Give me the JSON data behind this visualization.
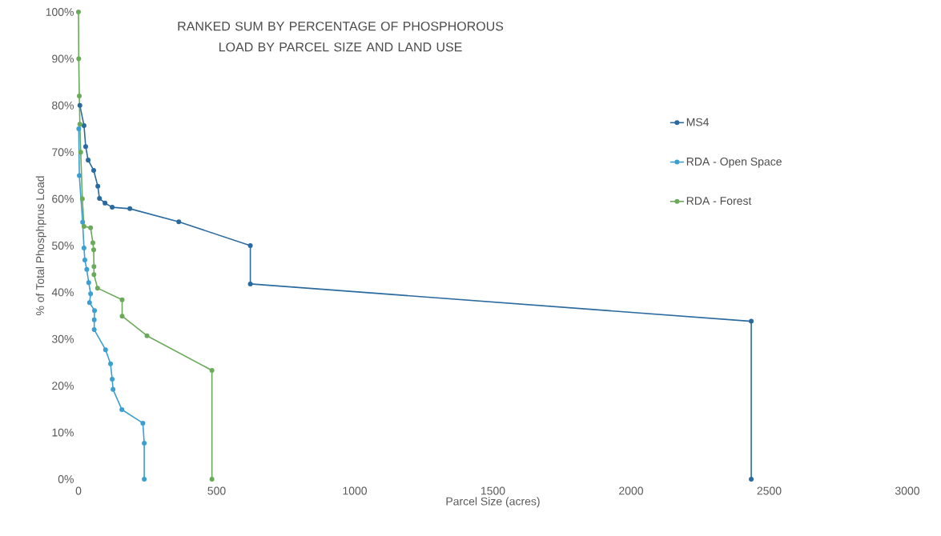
{
  "chart_data": {
    "type": "line",
    "title": "RANKED SUM BY PERCENTAGE OF PHOSPHOROUS LOAD BY PARCEL SIZE AND LAND USE",
    "xlabel": "Parcel Size (acres)",
    "ylabel": "% of Total Phosphprus Load",
    "xlim": [
      0,
      3000
    ],
    "xticks": [
      0,
      500,
      1000,
      1500,
      2000,
      2500,
      3000
    ],
    "ylim": [
      0,
      100
    ],
    "yticks": [
      {
        "value": 0,
        "label": "0%"
      },
      {
        "value": 10,
        "label": "10%"
      },
      {
        "value": 20,
        "label": "20%"
      },
      {
        "value": 30,
        "label": "30%"
      },
      {
        "value": 40,
        "label": "40%"
      },
      {
        "value": 50,
        "label": "50%"
      },
      {
        "value": 60,
        "label": "60%"
      },
      {
        "value": 70,
        "label": "70%"
      },
      {
        "value": 80,
        "label": "80%"
      },
      {
        "value": 90,
        "label": "90%"
      },
      {
        "value": 100,
        "label": "100%"
      }
    ],
    "grid": false,
    "legend": "right",
    "marker": "circle",
    "line_style": "solid",
    "series": [
      {
        "name": "MS4",
        "color": "#2a6a9e",
        "x": [
          5,
          20,
          26,
          35,
          55,
          70,
          76,
          96,
          122,
          186,
          363,
          622,
          622,
          2435,
          2435
        ],
        "values": [
          80,
          75.7,
          71.2,
          68.3,
          66.1,
          62.7,
          60.1,
          59.1,
          58.2,
          57.9,
          55.1,
          50,
          41.8,
          33.8,
          0
        ]
      },
      {
        "name": "RDA - Open Space",
        "color": "#3b9fd1",
        "x": [
          1,
          3,
          15,
          20,
          23,
          30,
          37,
          44,
          40,
          58,
          57,
          57,
          98,
          116,
          122,
          125,
          157,
          233,
          238,
          238
        ],
        "values": [
          75,
          65,
          55,
          49.5,
          46.9,
          44.9,
          42.1,
          39.7,
          37.8,
          36.1,
          34.1,
          32,
          27.7,
          24.7,
          21.4,
          19.2,
          14.9,
          12,
          7.7,
          0
        ]
      },
      {
        "name": "RDA - Forest",
        "color": "#6aaa5a",
        "x": [
          0,
          1,
          3,
          5,
          8,
          14,
          20,
          44,
          52,
          55,
          56,
          56,
          69,
          158,
          158,
          248,
          483,
          483
        ],
        "values": [
          100,
          90,
          82,
          76,
          70,
          60,
          54.1,
          53.8,
          50.6,
          49.1,
          45.5,
          43.8,
          40.9,
          38.4,
          34.9,
          30.7,
          23.3,
          0
        ]
      }
    ]
  }
}
